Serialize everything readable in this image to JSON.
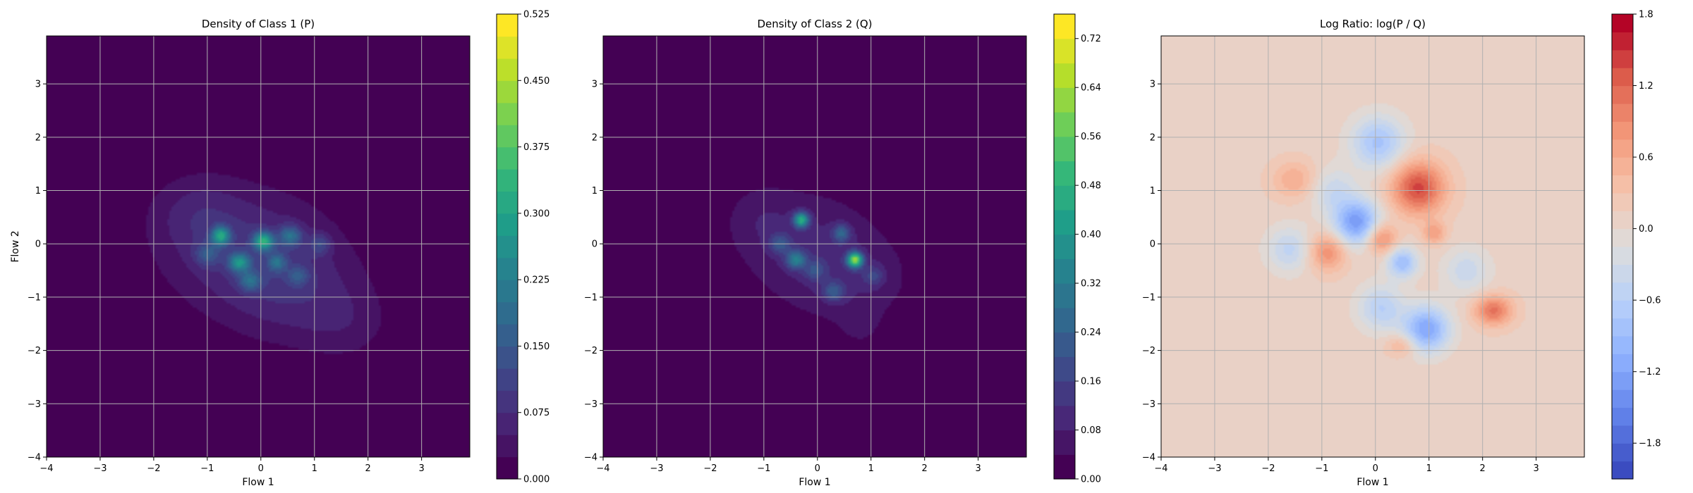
{
  "chart_data": [
    {
      "type": "heatmap",
      "title": "Density of Class 1 (P)",
      "xlabel": "Flow 1",
      "ylabel": "Flow 2",
      "xlim": [
        -4,
        3.9
      ],
      "ylim": [
        -4,
        3.9
      ],
      "xticks": [
        -4,
        -3,
        -2,
        -1,
        0,
        1,
        2,
        3
      ],
      "yticks": [
        -4,
        -3,
        -2,
        -1,
        0,
        1,
        2,
        3
      ],
      "grid": true,
      "colormap": "viridis",
      "colorbar": {
        "min": 0.0,
        "max": 0.525,
        "ticks": [
          "0.000",
          "0.075",
          "0.150",
          "0.225",
          "0.300",
          "0.375",
          "0.450",
          "0.525"
        ],
        "levels": 21
      },
      "blobs": [
        {
          "x": -0.3,
          "y": -0.1,
          "sx": 1.1,
          "sy": 0.8,
          "amp": 0.07
        },
        {
          "x": 0.6,
          "y": -0.9,
          "sx": 0.9,
          "sy": 0.7,
          "amp": 0.05
        },
        {
          "x": -1.2,
          "y": 0.6,
          "sx": 0.6,
          "sy": 0.5,
          "amp": 0.04
        },
        {
          "x": 1.6,
          "y": -1.5,
          "sx": 0.6,
          "sy": 0.5,
          "amp": 0.03
        },
        {
          "x": -0.75,
          "y": 0.15,
          "sx": 0.12,
          "sy": 0.12,
          "amp": 0.24
        },
        {
          "x": 0.05,
          "y": 0.05,
          "sx": 0.13,
          "sy": 0.12,
          "amp": 0.26
        },
        {
          "x": -0.4,
          "y": -0.35,
          "sx": 0.14,
          "sy": 0.12,
          "amp": 0.2
        },
        {
          "x": 0.55,
          "y": 0.15,
          "sx": 0.15,
          "sy": 0.14,
          "amp": 0.14
        },
        {
          "x": -0.2,
          "y": -0.7,
          "sx": 0.15,
          "sy": 0.13,
          "amp": 0.12
        },
        {
          "x": 0.3,
          "y": -0.35,
          "sx": 0.12,
          "sy": 0.12,
          "amp": 0.12
        },
        {
          "x": 1.1,
          "y": 0.0,
          "sx": 0.14,
          "sy": 0.14,
          "amp": 0.08
        },
        {
          "x": -1.0,
          "y": -0.2,
          "sx": 0.16,
          "sy": 0.15,
          "amp": 0.09
        },
        {
          "x": 0.7,
          "y": -0.6,
          "sx": 0.14,
          "sy": 0.13,
          "amp": 0.08
        }
      ]
    },
    {
      "type": "heatmap",
      "title": "Density of Class 2 (Q)",
      "xlabel": "Flow 1",
      "ylabel": "",
      "xlim": [
        -4,
        3.9
      ],
      "ylim": [
        -4,
        3.9
      ],
      "xticks": [
        -4,
        -3,
        -2,
        -1,
        0,
        1,
        2,
        3
      ],
      "yticks": [
        -4,
        -3,
        -2,
        -1,
        0,
        1,
        2,
        3
      ],
      "grid": true,
      "colormap": "viridis",
      "colorbar": {
        "min": 0.0,
        "max": 0.76,
        "ticks": [
          "0.00",
          "0.08",
          "0.16",
          "0.24",
          "0.32",
          "0.40",
          "0.48",
          "0.56",
          "0.64",
          "0.72"
        ],
        "levels": 19
      },
      "blobs": [
        {
          "x": -0.2,
          "y": 0.0,
          "sx": 0.9,
          "sy": 0.75,
          "amp": 0.08
        },
        {
          "x": 0.7,
          "y": -0.7,
          "sx": 0.8,
          "sy": 0.6,
          "amp": 0.06
        },
        {
          "x": -1.1,
          "y": 0.5,
          "sx": 0.45,
          "sy": 0.45,
          "amp": 0.04
        },
        {
          "x": 0.8,
          "y": -1.6,
          "sx": 0.3,
          "sy": 0.3,
          "amp": 0.03
        },
        {
          "x": -0.3,
          "y": 0.45,
          "sx": 0.1,
          "sy": 0.1,
          "amp": 0.4
        },
        {
          "x": 0.7,
          "y": -0.3,
          "sx": 0.1,
          "sy": 0.1,
          "amp": 0.55
        },
        {
          "x": -0.4,
          "y": -0.3,
          "sx": 0.13,
          "sy": 0.12,
          "amp": 0.25
        },
        {
          "x": 0.45,
          "y": 0.2,
          "sx": 0.12,
          "sy": 0.12,
          "amp": 0.18
        },
        {
          "x": 0.3,
          "y": -0.9,
          "sx": 0.14,
          "sy": 0.13,
          "amp": 0.15
        },
        {
          "x": -0.7,
          "y": 0.0,
          "sx": 0.14,
          "sy": 0.13,
          "amp": 0.14
        },
        {
          "x": 1.05,
          "y": -0.6,
          "sx": 0.14,
          "sy": 0.14,
          "amp": 0.1
        },
        {
          "x": -0.05,
          "y": -0.5,
          "sx": 0.13,
          "sy": 0.13,
          "amp": 0.12
        }
      ]
    },
    {
      "type": "heatmap",
      "title": "Log Ratio: log(P / Q)",
      "xlabel": "Flow 1",
      "ylabel": "",
      "xlim": [
        -4,
        3.9
      ],
      "ylim": [
        -4,
        3.9
      ],
      "xticks": [
        -4,
        -3,
        -2,
        -1,
        0,
        1,
        2,
        3
      ],
      "yticks": [
        -4,
        -3,
        -2,
        -1,
        0,
        1,
        2,
        3
      ],
      "grid": true,
      "colormap": "coolwarm",
      "colorbar": {
        "min": -2.1,
        "max": 1.8,
        "ticks": [
          "−1.8",
          "−1.2",
          "−0.6",
          "0.0",
          "0.6",
          "1.2",
          "1.8"
        ],
        "levels": 26
      },
      "base_value": 0.1,
      "blobs": [
        {
          "x": 0.8,
          "y": 1.05,
          "sx": 0.35,
          "sy": 0.35,
          "amp": 1.3
        },
        {
          "x": 0.1,
          "y": 0.1,
          "sx": 0.2,
          "sy": 0.2,
          "amp": 0.9
        },
        {
          "x": -0.9,
          "y": -0.15,
          "sx": 0.25,
          "sy": 0.25,
          "amp": 0.8
        },
        {
          "x": 2.2,
          "y": -1.25,
          "sx": 0.25,
          "sy": 0.2,
          "amp": 1.0
        },
        {
          "x": -1.5,
          "y": 1.2,
          "sx": 0.3,
          "sy": 0.25,
          "amp": 0.5
        },
        {
          "x": 1.1,
          "y": 0.2,
          "sx": 0.15,
          "sy": 0.15,
          "amp": 0.6
        },
        {
          "x": 0.5,
          "y": -1.9,
          "sx": 0.2,
          "sy": 0.15,
          "amp": 0.5
        },
        {
          "x": -0.35,
          "y": 0.4,
          "sx": 0.3,
          "sy": 0.3,
          "amp": -1.4
        },
        {
          "x": 0.05,
          "y": 1.9,
          "sx": 0.35,
          "sy": 0.35,
          "amp": -0.9
        },
        {
          "x": 0.95,
          "y": -1.6,
          "sx": 0.3,
          "sy": 0.3,
          "amp": -1.3
        },
        {
          "x": 0.5,
          "y": -0.35,
          "sx": 0.2,
          "sy": 0.2,
          "amp": -1.0
        },
        {
          "x": -1.6,
          "y": -0.1,
          "sx": 0.3,
          "sy": 0.3,
          "amp": -0.6
        },
        {
          "x": 1.7,
          "y": -0.5,
          "sx": 0.3,
          "sy": 0.3,
          "amp": -0.5
        },
        {
          "x": 0.1,
          "y": -1.2,
          "sx": 0.3,
          "sy": 0.3,
          "amp": -0.7
        },
        {
          "x": -0.8,
          "y": 1.0,
          "sx": 0.3,
          "sy": 0.3,
          "amp": -0.5
        }
      ]
    }
  ]
}
